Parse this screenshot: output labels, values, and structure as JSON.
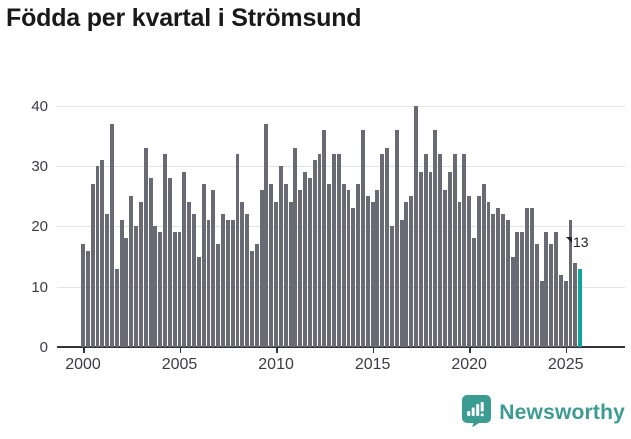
{
  "title": "Födda per kvartal i Strömsund",
  "chart_data": {
    "type": "bar",
    "title": "Födda per kvartal i Strömsund",
    "frequency": "quarterly",
    "x_start": "2000 Q1",
    "x_end": "2025 Q4",
    "values": [
      17,
      16,
      27,
      30,
      31,
      22,
      37,
      13,
      21,
      18,
      25,
      20,
      24,
      33,
      28,
      20,
      19,
      32,
      28,
      19,
      19,
      29,
      24,
      22,
      15,
      27,
      21,
      26,
      17,
      22,
      21,
      21,
      32,
      24,
      22,
      16,
      17,
      26,
      37,
      27,
      24,
      30,
      27,
      24,
      33,
      26,
      29,
      28,
      31,
      32,
      36,
      27,
      32,
      32,
      27,
      26,
      23,
      27,
      36,
      25,
      24,
      26,
      32,
      33,
      20,
      36,
      21,
      24,
      25,
      40,
      29,
      32,
      29,
      36,
      32,
      26,
      29,
      32,
      24,
      32,
      25,
      18,
      25,
      27,
      24,
      22,
      23,
      22,
      21,
      15,
      19,
      19,
      23,
      23,
      17,
      11,
      19,
      17,
      19,
      12,
      11,
      21,
      14,
      13
    ],
    "highlight_last": true,
    "last_value_label": "13",
    "ylim": [
      0,
      40
    ],
    "yticks": [
      0,
      10,
      20,
      30,
      40
    ],
    "xticks": [
      2000,
      2005,
      2010,
      2015,
      2020,
      2025
    ],
    "grid": true,
    "legend_position": "none",
    "bar_color": "#696a73",
    "highlight_color": "#0fa39c"
  },
  "axes": {
    "y_labels": [
      "0",
      "10",
      "20",
      "30",
      "40"
    ],
    "x_labels": [
      "2000",
      "2005",
      "2010",
      "2015",
      "2020",
      "2025"
    ]
  },
  "annotation": {
    "label": "13"
  },
  "footer": {
    "brand": "Newsworthy",
    "logo_icon": "newsworthy-speech-bubble-bar-chart-icon",
    "brand_color": "#3c9c94"
  }
}
